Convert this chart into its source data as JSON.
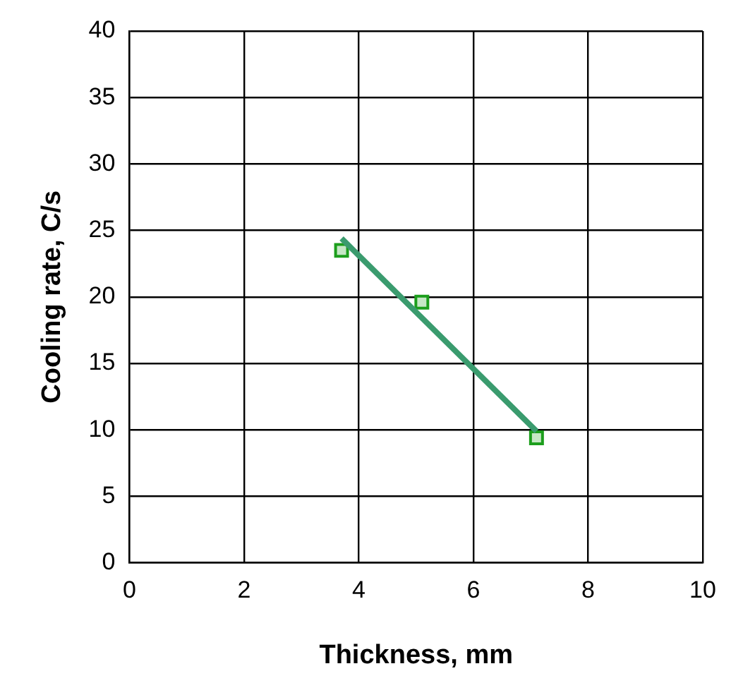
{
  "chart_data": {
    "type": "scatter",
    "xlabel": "Thickness, mm",
    "ylabel": "Cooling rate, C/s",
    "xlim": [
      0,
      10
    ],
    "xticks": [
      0,
      2,
      4,
      6,
      8,
      10
    ],
    "ylim": [
      0,
      40
    ],
    "yticks": [
      0,
      5,
      10,
      15,
      20,
      25,
      30,
      35,
      40
    ],
    "grid": true,
    "legend": false,
    "series": [
      {
        "type": "line",
        "color": "#3a9b6e",
        "x": [
          3.7,
          7.1
        ],
        "values": [
          24.4,
          9.9
        ],
        "marker": "none",
        "line_style": "solid"
      },
      {
        "color": "#1c9e1c",
        "x": [
          3.7,
          5.1,
          7.1
        ],
        "values": [
          23.5,
          19.6,
          9.4
        ],
        "marker": "square"
      }
    ]
  }
}
